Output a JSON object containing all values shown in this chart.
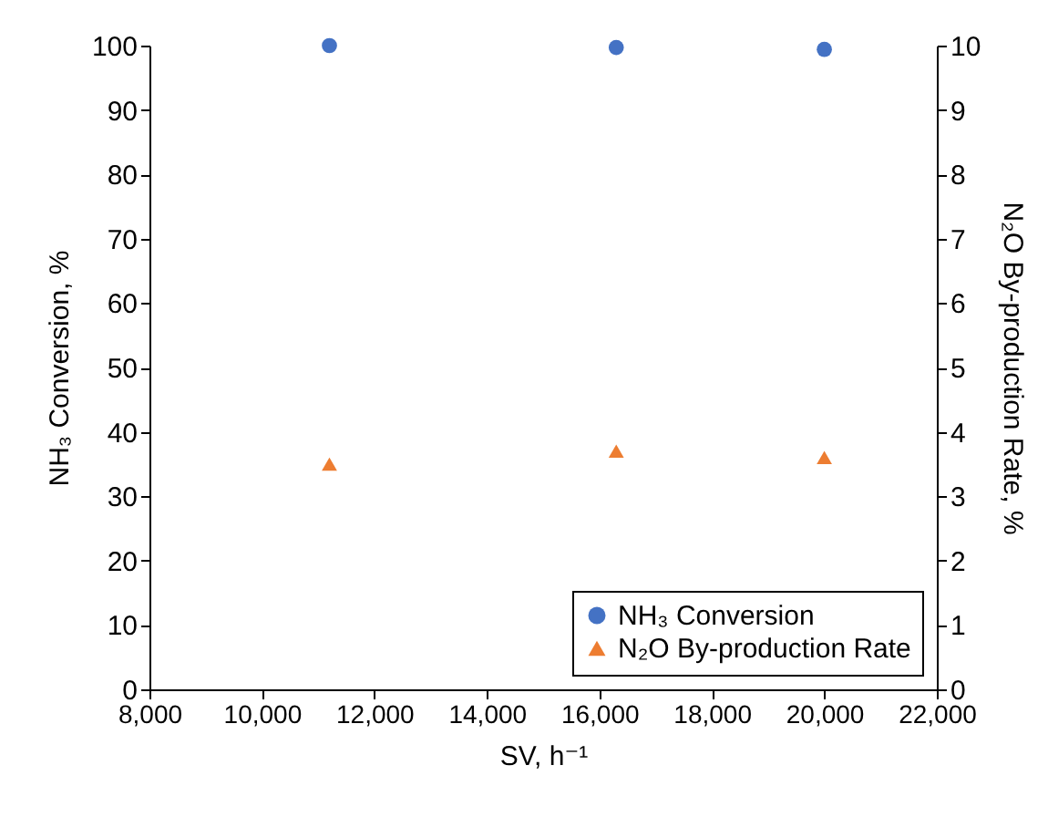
{
  "chart_data": {
    "type": "scatter",
    "xlabel": "SV, h⁻¹",
    "ylabel": "NH₃ Conversion, %",
    "y2label": "N₂O By-production Rate, %",
    "x": [
      11200,
      16300,
      20000
    ],
    "series": [
      {
        "name": "NH₃ Conversion",
        "color": "#4472c4",
        "marker": "circle",
        "values": [
          100,
          99.7,
          99.4
        ]
      },
      {
        "name": "N₂O By-production Rate",
        "color": "#ed7d31",
        "marker": "triangle",
        "axis": "y2",
        "values": [
          3.5,
          3.7,
          3.6
        ]
      }
    ],
    "xlim": [
      8000,
      22000
    ],
    "xticks": [
      {
        "value": 8000,
        "label": "8,000"
      },
      {
        "value": 10000,
        "label": "10,000"
      },
      {
        "value": 12000,
        "label": "12,000"
      },
      {
        "value": 14000,
        "label": "14,000"
      },
      {
        "value": 16000,
        "label": "16,000"
      },
      {
        "value": 18000,
        "label": "18,000"
      },
      {
        "value": 20000,
        "label": "20,000"
      },
      {
        "value": 22000,
        "label": "22,000"
      }
    ],
    "ylim": [
      0,
      100
    ],
    "yticks": [
      0,
      10,
      20,
      30,
      40,
      50,
      60,
      70,
      80,
      90,
      100
    ],
    "y2lim": [
      0,
      10
    ],
    "y2ticks": [
      0,
      1,
      2,
      3,
      4,
      5,
      6,
      7,
      8,
      9,
      10
    ],
    "grid": false,
    "legend": "bottom right"
  }
}
